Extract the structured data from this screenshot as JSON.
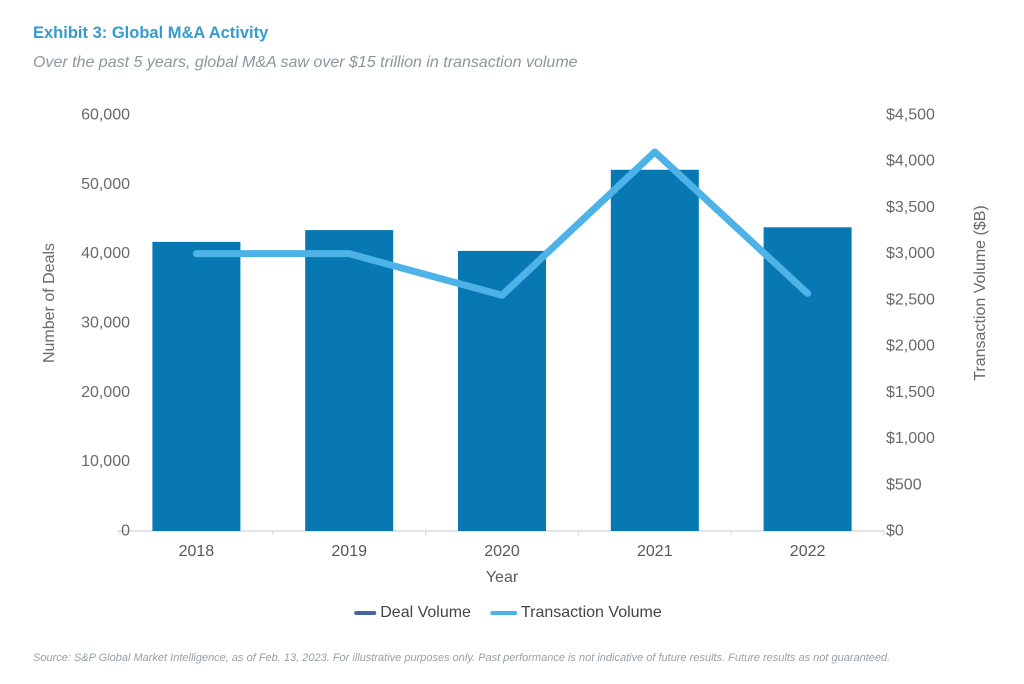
{
  "header": {
    "title": "Exhibit 3: Global M&A Activity",
    "subtitle": "Over the past 5 years, global M&A saw over $15 trillion in transaction volume"
  },
  "chart_data": {
    "type": "bar",
    "subtype": "bar-line-combo",
    "title": "Exhibit 3: Global M&A Activity",
    "subtitle": "Over the past 5 years, global M&A saw over $15 trillion in transaction volume",
    "categories": [
      "2018",
      "2019",
      "2020",
      "2021",
      "2022"
    ],
    "series": [
      {
        "name": "Deal Volume",
        "type": "bar",
        "axis": "left",
        "color": "#0878B2",
        "legend_marker_color": "#46649F",
        "values": [
          41700,
          43400,
          40400,
          52100,
          43800
        ]
      },
      {
        "name": "Transaction Volume",
        "type": "line",
        "axis": "right",
        "color": "#4DB2E8",
        "legend_marker_color": "#4DB2E8",
        "values": [
          3000,
          3000,
          2550,
          4100,
          2570
        ]
      }
    ],
    "xlabel": "Year",
    "left_axis": {
      "label": "Number of Deals",
      "min": 0,
      "max": 60000,
      "tick_step": 10000,
      "tick_values": [
        0,
        10000,
        20000,
        30000,
        40000,
        50000,
        60000
      ],
      "tick_labels": [
        "0",
        "10,000",
        "20,000",
        "30,000",
        "40,000",
        "50,000",
        "60,000"
      ]
    },
    "right_axis": {
      "label": "Transaction Volume ($B)",
      "min": 0,
      "max": 4500,
      "tick_step": 500,
      "tick_values": [
        0,
        500,
        1000,
        1500,
        2000,
        2500,
        3000,
        3500,
        4000,
        4500
      ],
      "tick_labels": [
        "$0",
        "$500",
        "$1,000",
        "$1,500",
        "$2,000",
        "$2,500",
        "$3,000",
        "$3,500",
        "$4,000",
        "$4,500"
      ]
    },
    "grid": false,
    "legend_position": "bottom-center"
  },
  "legend": {
    "deal_volume_label": "Deal Volume",
    "transaction_volume_label": "Transaction Volume"
  },
  "footer": {
    "source": "Source: S&P Global Market Intelligence, as of Feb. 13, 2023. For illustrative purposes only. Past performance is not indicative of future results. Future results as not guaranteed."
  },
  "colors": {
    "title": "#379BD0",
    "subtitle": "#8C969C",
    "axis_text": "#68696C",
    "x_tick_text": "#58595C",
    "legend_text": "#414549",
    "axis_line": "#D9DCDD",
    "source_text": "#95A0A6",
    "bar": "#0878B2",
    "line": "#4DB2E8",
    "legend_deal_marker": "#46649F"
  }
}
